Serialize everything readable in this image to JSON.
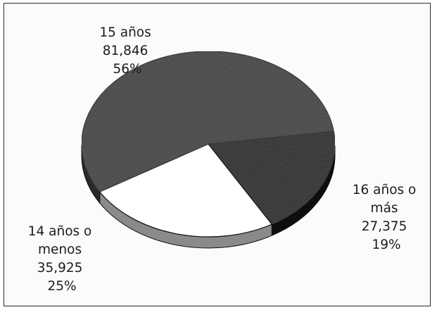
{
  "chart_data": {
    "type": "pie",
    "title": "",
    "slices": [
      {
        "label_lines": [
          "15 años",
          "81,846",
          "56%"
        ],
        "value": 81846,
        "percent": 56,
        "color": "#3a3a3a"
      },
      {
        "label_lines": [
          "16 años o",
          "más",
          "27,375",
          "19%"
        ],
        "value": 27375,
        "percent": 19,
        "color": "#141414"
      },
      {
        "label_lines": [
          "14 años o",
          "menos",
          "35,925",
          "25%"
        ],
        "value": 35925,
        "percent": 25,
        "color": "#ffffff"
      }
    ],
    "style": "3d-tilted",
    "legend": "none"
  }
}
